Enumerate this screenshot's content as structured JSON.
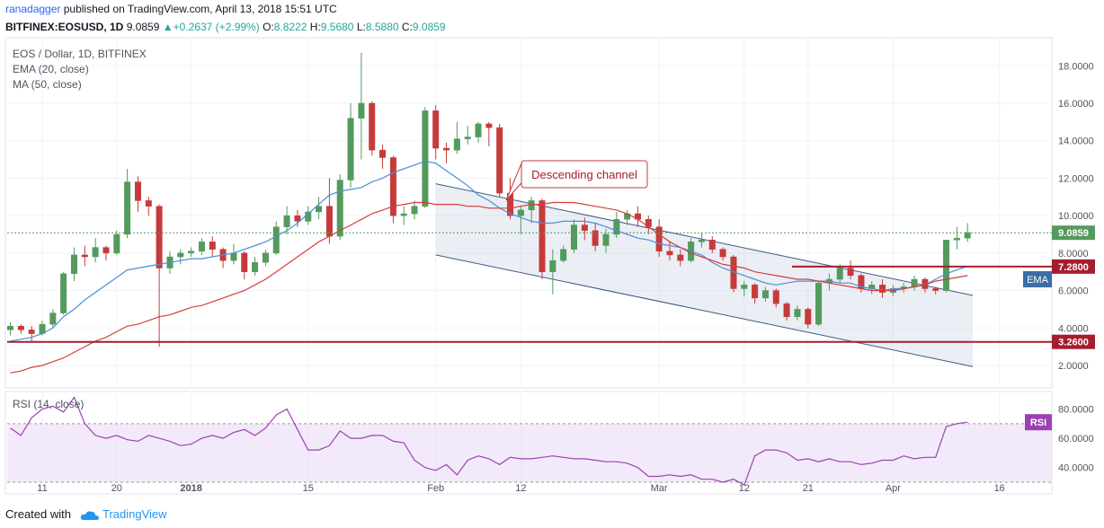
{
  "header": {
    "published_by": "ranadagger",
    "published_rest": " published on TradingView.com, April 13, 2018 15:51 UTC",
    "symbol_line": "BITFINEX:EOSUSD, 1D",
    "last": "9.0859",
    "change": "+0.2637 (+2.99%)",
    "o_label": "O:",
    "o_val": "8.8222",
    "h_label": "H:",
    "h_val": "9.5680",
    "l_label": "L:",
    "l_val": "8.5880",
    "c_label": "C:",
    "c_val": "9.0859"
  },
  "legend": {
    "title": "EOS / Dollar, 1D, BITFINEX",
    "ema": "EMA (20, close)",
    "ma": "MA (50, close)",
    "rsi": "RSI (14, close)"
  },
  "annotation": {
    "text": "Descending channel"
  },
  "badges": {
    "price": "9.0859",
    "resistance": "7.2800",
    "support": "3.2600",
    "ema": "EMA",
    "rsi": "RSI"
  },
  "footer": {
    "created_with": "Created with",
    "brand": "TradingView"
  },
  "colors": {
    "up": "#539a5c",
    "down": "#c53b3b",
    "ema": "#4a90d9",
    "ma": "#d43f3a",
    "level": "#a51d2d",
    "channel": "#3d5a80",
    "rsi": "#9e3fb3",
    "accent": "#2962ff"
  },
  "chart_data": [
    {
      "type": "candlestick",
      "title": "EOS / Dollar, 1D, BITFINEX",
      "ylim": [
        0.8,
        19.5
      ],
      "y_ticks": [
        "2.0000",
        "4.0000",
        "6.0000",
        "8.0000",
        "10.0000",
        "12.0000",
        "14.0000",
        "16.0000",
        "18.0000"
      ],
      "x_ticks": [
        "11",
        "20",
        "2018",
        "15",
        "Feb",
        "12",
        "Mar",
        "12",
        "21",
        "Apr",
        "16"
      ],
      "series": [
        {
          "name": "EMA (20, close)",
          "values": [
            3.3,
            3.4,
            3.5,
            3.7,
            4.0,
            4.6,
            5.0,
            5.5,
            5.9,
            6.3,
            6.7,
            7.1,
            7.2,
            7.3,
            7.4,
            7.5,
            7.6,
            7.7,
            7.7,
            7.8,
            7.9,
            8.0,
            8.2,
            8.4,
            8.6,
            8.9,
            9.2,
            9.6,
            10.1,
            10.6,
            11.1,
            11.3,
            11.4,
            11.5,
            11.8,
            12.0,
            12.3,
            12.5,
            12.7,
            12.9,
            12.8,
            12.4,
            12.0,
            11.6,
            11.1,
            10.8,
            10.4,
            10.1,
            9.9,
            9.7,
            9.6,
            9.6,
            9.7,
            9.7,
            9.7,
            9.6,
            9.4,
            9.2,
            9.0,
            8.8,
            8.7,
            8.5,
            8.4,
            8.3,
            8.1,
            7.9,
            7.5,
            7.2,
            7.0,
            6.8,
            6.6,
            6.4,
            6.3,
            6.4,
            6.5,
            6.5,
            6.5,
            6.5,
            6.4,
            6.4,
            6.2,
            6.1,
            6.0,
            6.1,
            6.1,
            6.2,
            6.3,
            6.6,
            6.9,
            7.1,
            7.3
          ]
        },
        {
          "name": "MA (50, close)",
          "values": [
            1.6,
            1.7,
            1.9,
            2.0,
            2.2,
            2.4,
            2.7,
            3.0,
            3.3,
            3.5,
            3.8,
            4.1,
            4.2,
            4.4,
            4.6,
            4.7,
            4.9,
            5.1,
            5.2,
            5.4,
            5.6,
            5.8,
            6.0,
            6.3,
            6.6,
            7.0,
            7.4,
            7.8,
            8.2,
            8.6,
            8.9,
            9.2,
            9.5,
            9.8,
            10.1,
            10.3,
            10.5,
            10.6,
            10.7,
            10.7,
            10.6,
            10.6,
            10.6,
            10.5,
            10.5,
            10.4,
            10.4,
            10.4,
            10.5,
            10.6,
            10.6,
            10.7,
            10.7,
            10.7,
            10.6,
            10.5,
            10.4,
            10.3,
            10.1,
            9.8,
            9.4,
            9.0,
            8.6,
            8.3,
            8.0,
            7.8,
            7.6,
            7.4,
            7.3,
            7.2,
            7.0,
            6.9,
            6.8,
            6.7,
            6.6,
            6.6,
            6.5,
            6.4,
            6.3,
            6.2,
            6.1,
            6.0,
            6.0,
            6.0,
            6.1,
            6.2,
            6.3,
            6.5,
            6.6,
            6.7,
            6.8
          ]
        },
        {
          "name": "RSI (14, close)",
          "values": [
            67,
            62,
            74,
            80,
            82,
            78,
            88,
            70,
            62,
            60,
            62,
            59,
            58,
            62,
            60,
            58,
            55,
            56,
            60,
            62,
            60,
            64,
            66,
            62,
            67,
            76,
            80,
            66,
            52,
            52,
            55,
            65,
            60,
            60,
            62,
            62,
            58,
            57,
            45,
            40,
            38,
            42,
            35,
            45,
            48,
            46,
            42,
            47,
            46,
            46,
            47,
            48,
            47,
            46,
            46,
            45,
            44,
            44,
            43,
            40,
            34,
            34,
            35,
            34,
            35,
            32,
            32,
            30,
            32,
            28,
            48,
            52,
            52,
            50,
            45,
            46,
            44,
            46,
            44,
            44,
            42,
            43,
            45,
            45,
            48,
            46,
            47,
            47,
            68,
            70,
            71
          ]
        }
      ],
      "candles": [
        [
          3.9,
          4.3,
          3.6,
          4.1
        ],
        [
          4.1,
          4.2,
          3.7,
          3.9
        ],
        [
          3.9,
          4.1,
          3.3,
          3.7
        ],
        [
          3.7,
          4.4,
          3.6,
          4.2
        ],
        [
          4.2,
          5.0,
          4.0,
          4.8
        ],
        [
          4.8,
          7.0,
          4.7,
          6.9
        ],
        [
          6.9,
          8.3,
          6.5,
          7.9
        ],
        [
          7.9,
          8.4,
          7.3,
          7.8
        ],
        [
          7.8,
          8.8,
          7.5,
          8.3
        ],
        [
          8.3,
          8.4,
          7.6,
          8.0
        ],
        [
          8.0,
          9.2,
          7.9,
          9.0
        ],
        [
          9.0,
          12.5,
          8.8,
          11.8
        ],
        [
          11.8,
          12.1,
          10.2,
          10.8
        ],
        [
          10.8,
          11.0,
          10.0,
          10.5
        ],
        [
          10.5,
          10.6,
          3.0,
          7.2
        ],
        [
          7.2,
          8.1,
          6.9,
          7.8
        ],
        [
          7.8,
          8.2,
          7.4,
          8.0
        ],
        [
          8.0,
          8.3,
          7.8,
          8.1
        ],
        [
          8.1,
          8.8,
          7.9,
          8.6
        ],
        [
          8.6,
          8.9,
          7.8,
          8.2
        ],
        [
          8.2,
          8.3,
          7.2,
          7.6
        ],
        [
          7.6,
          8.5,
          7.4,
          8.0
        ],
        [
          8.0,
          8.1,
          6.6,
          7.0
        ],
        [
          7.0,
          7.8,
          6.8,
          7.5
        ],
        [
          7.5,
          8.2,
          7.3,
          8.0
        ],
        [
          8.0,
          9.7,
          7.9,
          9.4
        ],
        [
          9.4,
          10.5,
          9.0,
          10.0
        ],
        [
          10.0,
          10.3,
          9.4,
          9.7
        ],
        [
          9.7,
          10.5,
          9.5,
          10.2
        ],
        [
          10.2,
          11.0,
          9.8,
          10.5
        ],
        [
          10.5,
          12.0,
          8.5,
          8.9
        ],
        [
          8.9,
          12.2,
          8.7,
          11.9
        ],
        [
          11.9,
          16.0,
          11.5,
          15.2
        ],
        [
          15.2,
          18.7,
          13.0,
          16.0
        ],
        [
          16.0,
          16.1,
          13.2,
          13.5
        ],
        [
          13.5,
          13.8,
          12.5,
          13.1
        ],
        [
          13.1,
          13.2,
          9.6,
          10.0
        ],
        [
          10.0,
          10.5,
          9.5,
          10.1
        ],
        [
          10.1,
          10.8,
          9.8,
          10.5
        ],
        [
          10.5,
          15.8,
          10.4,
          15.6
        ],
        [
          15.6,
          15.9,
          13.0,
          13.6
        ],
        [
          13.6,
          13.9,
          12.8,
          13.5
        ],
        [
          13.5,
          15.0,
          13.3,
          14.1
        ],
        [
          14.1,
          14.8,
          13.8,
          14.2
        ],
        [
          14.2,
          15.0,
          13.9,
          14.9
        ],
        [
          14.9,
          15.0,
          13.7,
          14.7
        ],
        [
          14.7,
          14.9,
          11.0,
          11.2
        ],
        [
          11.2,
          12.0,
          9.8,
          10.0
        ],
        [
          10.0,
          10.5,
          9.0,
          10.3
        ],
        [
          10.3,
          11.0,
          9.6,
          10.8
        ],
        [
          10.8,
          10.9,
          6.6,
          7.0
        ],
        [
          7.0,
          8.2,
          5.8,
          7.6
        ],
        [
          7.6,
          8.4,
          7.5,
          8.2
        ],
        [
          8.2,
          9.8,
          8.0,
          9.5
        ],
        [
          9.5,
          9.9,
          8.7,
          9.2
        ],
        [
          9.2,
          9.6,
          8.1,
          8.4
        ],
        [
          8.4,
          9.3,
          8.0,
          9.0
        ],
        [
          9.0,
          10.2,
          8.8,
          9.8
        ],
        [
          9.8,
          10.3,
          9.5,
          10.1
        ],
        [
          10.1,
          10.5,
          9.4,
          9.8
        ],
        [
          9.8,
          10.0,
          9.0,
          9.4
        ],
        [
          9.4,
          9.8,
          7.8,
          8.1
        ],
        [
          8.1,
          8.6,
          7.6,
          7.9
        ],
        [
          7.9,
          8.2,
          7.3,
          7.6
        ],
        [
          7.6,
          8.8,
          7.5,
          8.6
        ],
        [
          8.6,
          9.1,
          8.3,
          8.7
        ],
        [
          8.7,
          8.9,
          8.0,
          8.2
        ],
        [
          8.2,
          8.3,
          7.6,
          7.8
        ],
        [
          7.8,
          7.9,
          5.9,
          6.1
        ],
        [
          6.1,
          6.5,
          5.7,
          6.3
        ],
        [
          6.3,
          6.4,
          5.3,
          5.6
        ],
        [
          5.6,
          6.2,
          5.4,
          6.0
        ],
        [
          6.0,
          6.1,
          5.1,
          5.3
        ],
        [
          5.3,
          5.4,
          4.4,
          4.6
        ],
        [
          4.6,
          5.2,
          4.4,
          5.0
        ],
        [
          5.0,
          5.1,
          4.0,
          4.2
        ],
        [
          4.2,
          6.5,
          4.1,
          6.4
        ],
        [
          6.4,
          6.9,
          6.0,
          6.6
        ],
        [
          6.6,
          7.4,
          6.4,
          7.2
        ],
        [
          7.2,
          7.6,
          6.6,
          6.8
        ],
        [
          6.8,
          6.9,
          5.9,
          6.1
        ],
        [
          6.1,
          6.5,
          5.8,
          6.3
        ],
        [
          6.3,
          6.6,
          5.6,
          5.9
        ],
        [
          5.9,
          6.3,
          5.7,
          6.1
        ],
        [
          6.1,
          6.4,
          5.9,
          6.2
        ],
        [
          6.2,
          6.8,
          6.0,
          6.6
        ],
        [
          6.6,
          6.7,
          5.9,
          6.1
        ],
        [
          6.1,
          6.2,
          5.8,
          6.0
        ],
        [
          6.0,
          8.7,
          5.9,
          8.7
        ],
        [
          8.7,
          9.4,
          8.2,
          8.8
        ],
        [
          8.8,
          9.6,
          8.6,
          9.1
        ]
      ],
      "levels": [
        7.28,
        3.26
      ],
      "rsi_ylim": [
        22,
        92
      ],
      "rsi_ticks": [
        "40.0000",
        "60.0000",
        "80.0000"
      ]
    }
  ]
}
